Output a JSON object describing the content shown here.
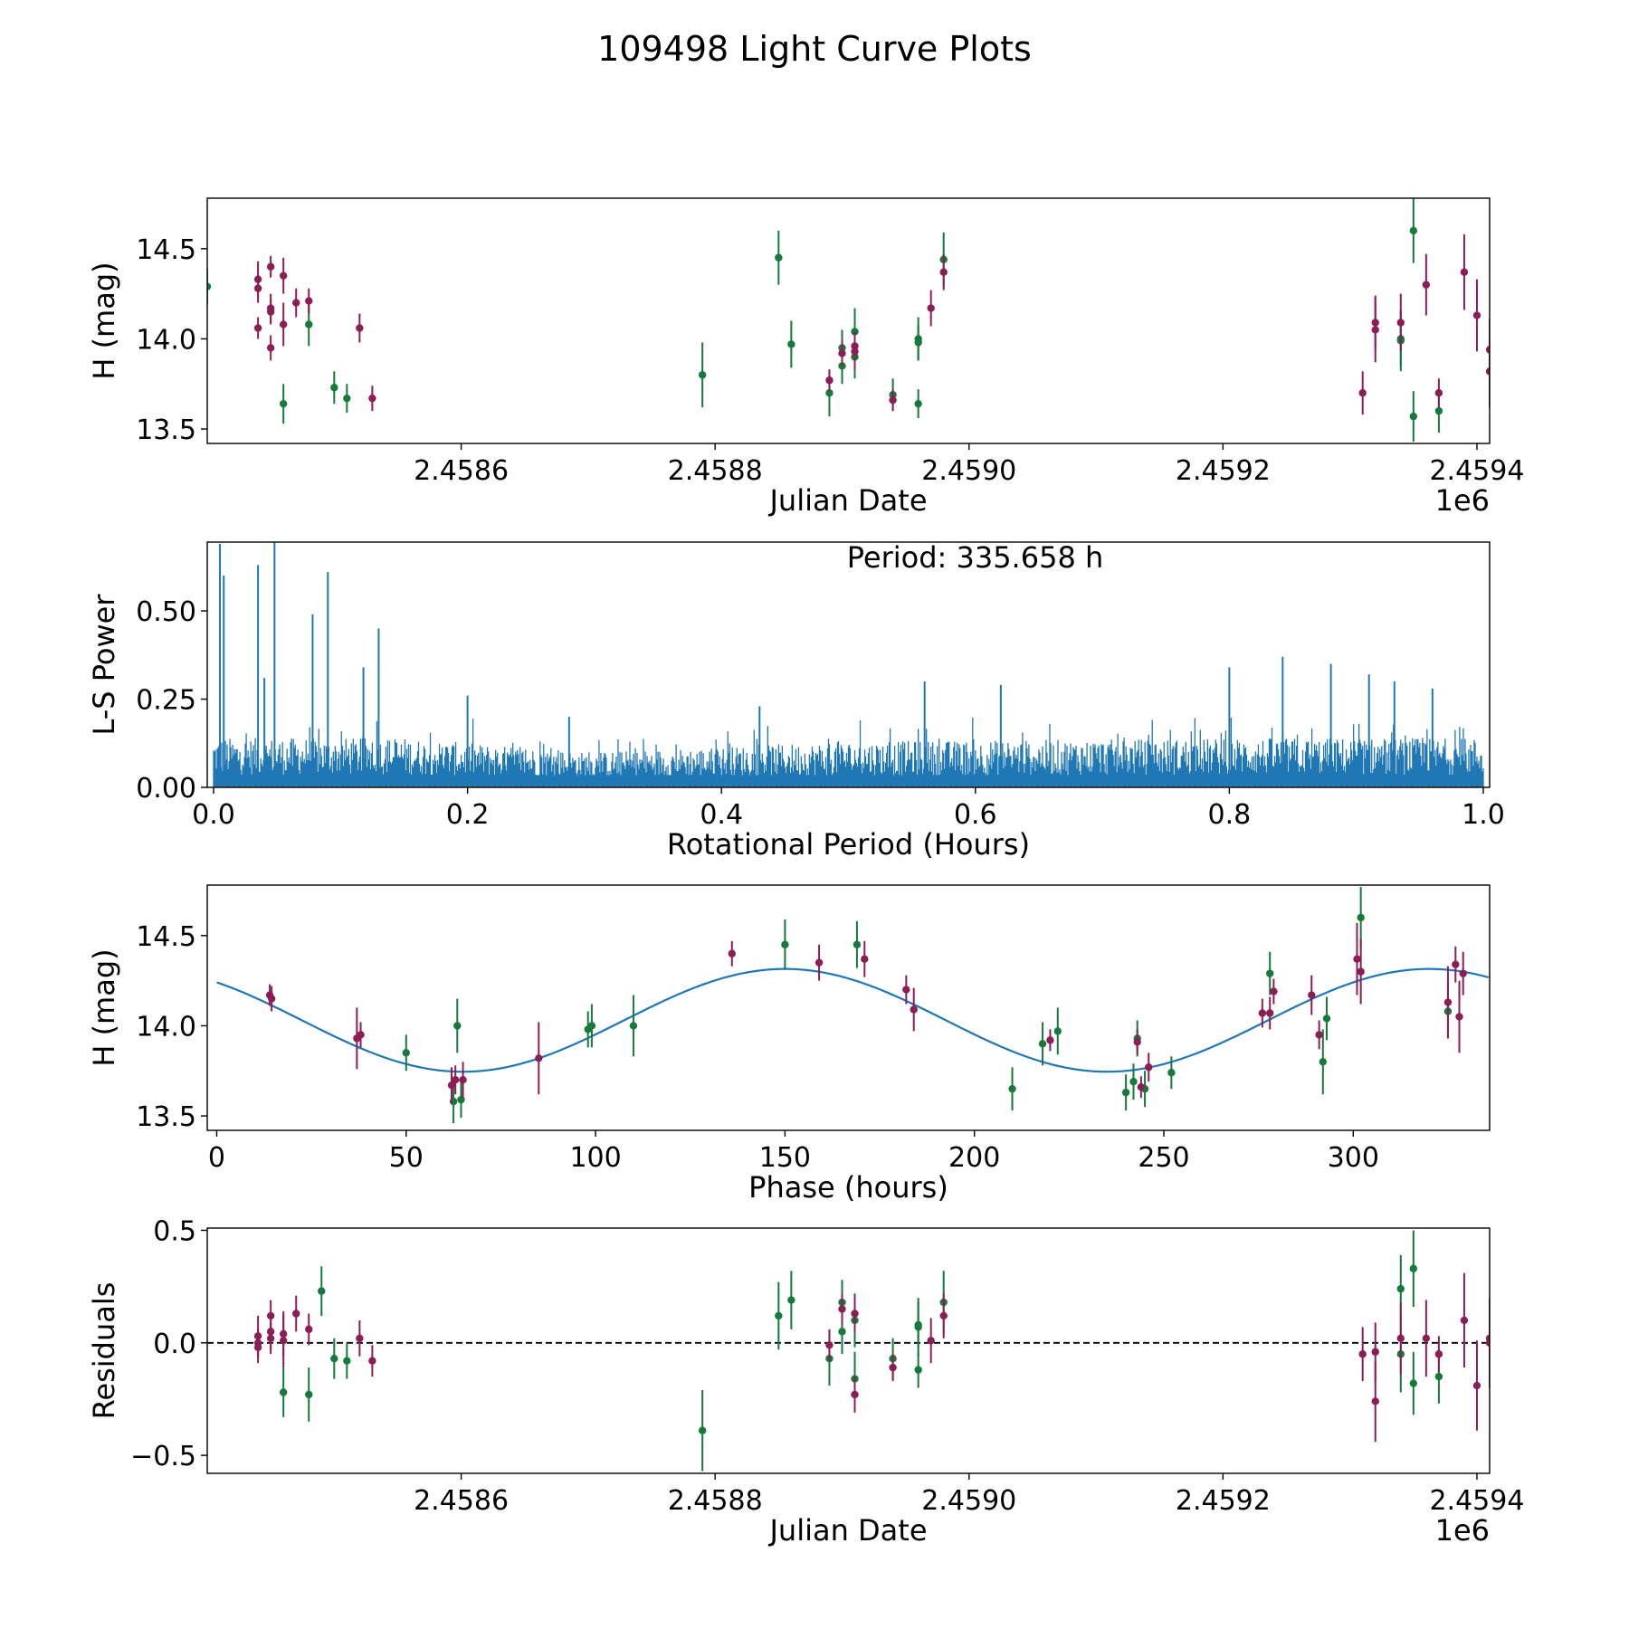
{
  "title": "109498 Light Curve Plots",
  "colors": {
    "green": "#157a3a",
    "purple": "#8b1e57",
    "blue": "#1f77b4",
    "zero_line": "#000000"
  },
  "chart_data": [
    {
      "id": "lightcurve",
      "type": "scatter",
      "xlabel": "Julian Date",
      "ylabel": "H (mag)",
      "offset_label": "1e6",
      "xlim": [
        2.4584,
        2.45941
      ],
      "ylim": [
        13.42,
        14.78
      ],
      "xticks": [
        2.4586,
        2.4588,
        2.459,
        2.4592,
        2.4594
      ],
      "xtick_labels": [
        "2.4586",
        "2.4588",
        "2.4590",
        "2.4592",
        "2.4594"
      ],
      "yticks": [
        13.5,
        14.0,
        14.5
      ],
      "ytick_labels": [
        "13.5",
        "14.0",
        "14.5"
      ],
      "series": [
        {
          "name": "green",
          "points": [
            [
              2.45846,
              13.64,
              0.11
            ],
            [
              2.45848,
              14.08,
              0.12
            ],
            [
              2.4584,
              14.29,
              0.1
            ],
            [
              2.4585,
              13.73,
              0.09
            ],
            [
              2.45851,
              13.67,
              0.08
            ],
            [
              2.45879,
              13.8,
              0.18
            ],
            [
              2.45885,
              14.45,
              0.15
            ],
            [
              2.45886,
              13.97,
              0.13
            ],
            [
              2.45889,
              13.7,
              0.13
            ],
            [
              2.4589,
              13.95,
              0.1
            ],
            [
              2.4589,
              13.85,
              0.1
            ],
            [
              2.45891,
              13.9,
              0.12
            ],
            [
              2.45891,
              14.04,
              0.13
            ],
            [
              2.45894,
              13.69,
              0.09
            ],
            [
              2.45896,
              13.64,
              0.08
            ],
            [
              2.45896,
              14.0,
              0.12
            ],
            [
              2.45896,
              13.98,
              0.1
            ],
            [
              2.45898,
              14.44,
              0.15
            ],
            [
              2.45934,
              14.0,
              0.15
            ],
            [
              2.45934,
              13.99,
              0.17
            ],
            [
              2.45935,
              14.6,
              0.18
            ],
            [
              2.45935,
              13.57,
              0.14
            ],
            [
              2.45937,
              13.6,
              0.12
            ]
          ]
        },
        {
          "name": "purple",
          "points": [
            [
              2.45844,
              14.06,
              0.06
            ],
            [
              2.45844,
              14.33,
              0.1
            ],
            [
              2.45844,
              14.28,
              0.08
            ],
            [
              2.45845,
              14.4,
              0.06
            ],
            [
              2.45845,
              14.15,
              0.07
            ],
            [
              2.45845,
              14.17,
              0.08
            ],
            [
              2.45845,
              13.95,
              0.07
            ],
            [
              2.45846,
              14.35,
              0.1
            ],
            [
              2.45846,
              14.08,
              0.12
            ],
            [
              2.45847,
              14.2,
              0.08
            ],
            [
              2.45848,
              14.21,
              0.07
            ],
            [
              2.45852,
              14.06,
              0.08
            ],
            [
              2.45853,
              13.67,
              0.07
            ],
            [
              2.45889,
              13.77,
              0.06
            ],
            [
              2.4589,
              13.92,
              0.07
            ],
            [
              2.45891,
              13.93,
              0.1
            ],
            [
              2.45891,
              13.96,
              0.08
            ],
            [
              2.45894,
              13.66,
              0.06
            ],
            [
              2.45897,
              14.17,
              0.1
            ],
            [
              2.45898,
              14.37,
              0.1
            ],
            [
              2.45931,
              13.7,
              0.12
            ],
            [
              2.45932,
              14.09,
              0.15
            ],
            [
              2.45932,
              14.05,
              0.18
            ],
            [
              2.45934,
              14.09,
              0.16
            ],
            [
              2.45936,
              14.3,
              0.17
            ],
            [
              2.45937,
              13.7,
              0.08
            ],
            [
              2.45939,
              14.37,
              0.21
            ],
            [
              2.4594,
              14.13,
              0.2
            ],
            [
              2.45941,
              13.94,
              0.17
            ],
            [
              2.45941,
              13.82,
              0.2
            ]
          ]
        }
      ]
    },
    {
      "id": "periodogram",
      "type": "line",
      "xlabel": "Rotational Period (Hours)",
      "ylabel": "L-S Power",
      "xlim": [
        -0.005,
        1.005
      ],
      "ylim": [
        0.0,
        0.695
      ],
      "xticks": [
        0.0,
        0.2,
        0.4,
        0.6,
        0.8,
        1.0
      ],
      "xtick_labels": [
        "0.0",
        "0.2",
        "0.4",
        "0.6",
        "0.8",
        "1.0"
      ],
      "yticks": [
        0.0,
        0.25,
        0.5
      ],
      "ytick_labels": [
        "0.00",
        "0.25",
        "0.50"
      ],
      "annotation": "Period: 335.658 h",
      "peaks": [
        [
          0.005,
          0.69
        ],
        [
          0.008,
          0.6
        ],
        [
          0.035,
          0.63
        ],
        [
          0.04,
          0.31
        ],
        [
          0.048,
          0.7
        ],
        [
          0.078,
          0.49
        ],
        [
          0.09,
          0.61
        ],
        [
          0.118,
          0.34
        ],
        [
          0.13,
          0.45
        ],
        [
          0.2,
          0.26
        ],
        [
          0.28,
          0.2
        ],
        [
          0.43,
          0.23
        ],
        [
          0.56,
          0.3
        ],
        [
          0.62,
          0.29
        ],
        [
          0.8,
          0.34
        ],
        [
          0.842,
          0.37
        ],
        [
          0.88,
          0.35
        ],
        [
          0.91,
          0.32
        ],
        [
          0.93,
          0.3
        ],
        [
          0.96,
          0.28
        ]
      ]
    },
    {
      "id": "phased",
      "type": "scatter",
      "xlabel": "Phase (hours)",
      "ylabel": "H (mag)",
      "xlim": [
        -2.5,
        336
      ],
      "ylim": [
        13.42,
        14.78
      ],
      "xticks": [
        0,
        50,
        100,
        150,
        200,
        250,
        300
      ],
      "xtick_labels": [
        "0",
        "50",
        "100",
        "150",
        "200",
        "250",
        "300"
      ],
      "yticks": [
        13.5,
        14.0,
        14.5
      ],
      "ytick_labels": [
        "13.5",
        "14.0",
        "14.5"
      ],
      "model": {
        "mean": 14.03,
        "amplitude": 0.285,
        "period": 170,
        "peak_phase": 150
      },
      "series": [
        {
          "name": "green",
          "points": [
            [
              50,
              13.85,
              0.1
            ],
            [
              62.5,
              13.58,
              0.12
            ],
            [
              63.5,
              14.0,
              0.15
            ],
            [
              64.5,
              13.59,
              0.1
            ],
            [
              98,
              13.98,
              0.1
            ],
            [
              99,
              14.0,
              0.12
            ],
            [
              110,
              14.0,
              0.17
            ],
            [
              150,
              14.45,
              0.14
            ],
            [
              169,
              14.45,
              0.13
            ],
            [
              210,
              13.65,
              0.12
            ],
            [
              218,
              13.9,
              0.12
            ],
            [
              222,
              13.97,
              0.13
            ],
            [
              240,
              13.63,
              0.1
            ],
            [
              242,
              13.69,
              0.1
            ],
            [
              243,
              13.93,
              0.1
            ],
            [
              245,
              13.65,
              0.1
            ],
            [
              252,
              13.74,
              0.09
            ],
            [
              278,
              14.29,
              0.12
            ],
            [
              292,
              13.8,
              0.18
            ],
            [
              293,
              14.04,
              0.12
            ],
            [
              302,
              14.6,
              0.17
            ],
            [
              325,
              14.08,
              0.15
            ]
          ]
        },
        {
          "name": "purple",
          "points": [
            [
              14,
              14.17,
              0.06
            ],
            [
              14.5,
              14.15,
              0.07
            ],
            [
              37,
              13.93,
              0.17
            ],
            [
              38,
              13.95,
              0.07
            ],
            [
              62,
              13.67,
              0.1
            ],
            [
              63,
              13.7,
              0.08
            ],
            [
              65,
              13.7,
              0.1
            ],
            [
              85,
              13.82,
              0.2
            ],
            [
              136,
              14.4,
              0.07
            ],
            [
              159,
              14.35,
              0.1
            ],
            [
              171,
              14.37,
              0.1
            ],
            [
              182,
              14.2,
              0.08
            ],
            [
              184,
              14.09,
              0.12
            ],
            [
              220,
              13.92,
              0.06
            ],
            [
              243,
              13.91,
              0.07
            ],
            [
              244,
              13.66,
              0.06
            ],
            [
              246,
              13.77,
              0.08
            ],
            [
              276,
              14.07,
              0.08
            ],
            [
              278,
              14.07,
              0.09
            ],
            [
              279,
              14.19,
              0.07
            ],
            [
              289,
              14.17,
              0.11
            ],
            [
              291,
              13.95,
              0.08
            ],
            [
              301,
              14.37,
              0.2
            ],
            [
              302,
              14.3,
              0.18
            ],
            [
              325,
              14.13,
              0.2
            ],
            [
              327,
              14.34,
              0.1
            ],
            [
              328,
              14.05,
              0.2
            ],
            [
              329,
              14.29,
              0.12
            ]
          ]
        }
      ]
    },
    {
      "id": "residuals",
      "type": "scatter",
      "xlabel": "Julian Date",
      "ylabel": "Residuals",
      "offset_label": "1e6",
      "xlim": [
        2.4584,
        2.45941
      ],
      "ylim": [
        -0.58,
        0.51
      ],
      "xticks": [
        2.4586,
        2.4588,
        2.459,
        2.4592,
        2.4594
      ],
      "xtick_labels": [
        "2.4586",
        "2.4588",
        "2.4590",
        "2.4592",
        "2.4594"
      ],
      "yticks": [
        -0.5,
        0.0,
        0.5
      ],
      "ytick_labels": [
        "−0.5",
        "0.0",
        "0.5"
      ],
      "zero_line": 0.0,
      "series": [
        {
          "name": "green",
          "points": [
            [
              2.45846,
              -0.22,
              0.11
            ],
            [
              2.45848,
              -0.23,
              0.12
            ],
            [
              2.45849,
              0.23,
              0.11
            ],
            [
              2.4585,
              -0.07,
              0.09
            ],
            [
              2.45851,
              -0.08,
              0.08
            ],
            [
              2.45879,
              -0.39,
              0.18
            ],
            [
              2.45885,
              0.12,
              0.15
            ],
            [
              2.45886,
              0.19,
              0.13
            ],
            [
              2.45889,
              -0.07,
              0.12
            ],
            [
              2.4589,
              0.18,
              0.1
            ],
            [
              2.4589,
              0.05,
              0.1
            ],
            [
              2.45891,
              0.1,
              0.12
            ],
            [
              2.45891,
              -0.16,
              0.12
            ],
            [
              2.45894,
              -0.07,
              0.09
            ],
            [
              2.45896,
              -0.12,
              0.08
            ],
            [
              2.45896,
              0.07,
              0.13
            ],
            [
              2.45896,
              0.08,
              0.1
            ],
            [
              2.45898,
              0.18,
              0.14
            ],
            [
              2.45934,
              0.24,
              0.15
            ],
            [
              2.45934,
              -0.05,
              0.17
            ],
            [
              2.45935,
              0.33,
              0.17
            ],
            [
              2.45935,
              -0.18,
              0.14
            ],
            [
              2.45937,
              -0.15,
              0.12
            ]
          ]
        },
        {
          "name": "purple",
          "points": [
            [
              2.45844,
              0.0,
              0.06
            ],
            [
              2.45844,
              0.03,
              0.09
            ],
            [
              2.45844,
              -0.02,
              0.07
            ],
            [
              2.45845,
              0.12,
              0.07
            ],
            [
              2.45845,
              0.02,
              0.07
            ],
            [
              2.45845,
              0.05,
              0.08
            ],
            [
              2.45846,
              0.04,
              0.1
            ],
            [
              2.45846,
              0.01,
              0.12
            ],
            [
              2.45847,
              0.13,
              0.08
            ],
            [
              2.45848,
              0.06,
              0.07
            ],
            [
              2.45852,
              0.02,
              0.08
            ],
            [
              2.45853,
              -0.08,
              0.07
            ],
            [
              2.45889,
              -0.01,
              0.07
            ],
            [
              2.4589,
              0.15,
              0.07
            ],
            [
              2.45891,
              0.13,
              0.08
            ],
            [
              2.45891,
              -0.23,
              0.08
            ],
            [
              2.45894,
              -0.11,
              0.06
            ],
            [
              2.45897,
              0.01,
              0.1
            ],
            [
              2.45898,
              0.12,
              0.1
            ],
            [
              2.45931,
              -0.05,
              0.12
            ],
            [
              2.45932,
              -0.04,
              0.13
            ],
            [
              2.45932,
              -0.26,
              0.18
            ],
            [
              2.45934,
              0.02,
              0.16
            ],
            [
              2.45936,
              0.02,
              0.17
            ],
            [
              2.45937,
              -0.05,
              0.08
            ],
            [
              2.45939,
              0.1,
              0.21
            ],
            [
              2.4594,
              -0.19,
              0.2
            ],
            [
              2.45941,
              0.02,
              0.17
            ],
            [
              2.45941,
              0.0,
              0.2
            ]
          ]
        }
      ]
    }
  ]
}
